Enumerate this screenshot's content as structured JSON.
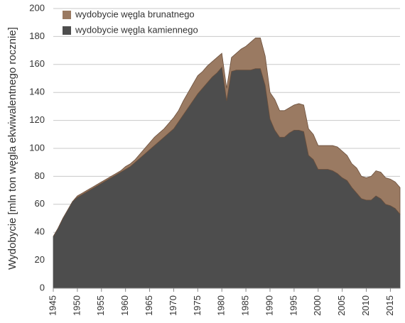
{
  "chart_data": {
    "type": "stacked_area",
    "y_label": "Wydobycie [mln ton węgla ekwiwalentnego rocznie]",
    "x": [
      1945,
      1946,
      1947,
      1948,
      1949,
      1950,
      1951,
      1952,
      1953,
      1954,
      1955,
      1956,
      1957,
      1958,
      1959,
      1960,
      1961,
      1962,
      1963,
      1964,
      1965,
      1966,
      1967,
      1968,
      1969,
      1970,
      1971,
      1972,
      1973,
      1974,
      1975,
      1976,
      1977,
      1978,
      1979,
      1980,
      1981,
      1982,
      1983,
      1984,
      1985,
      1986,
      1987,
      1988,
      1989,
      1990,
      1991,
      1992,
      1993,
      1994,
      1995,
      1996,
      1997,
      1998,
      1999,
      2000,
      2001,
      2002,
      2003,
      2004,
      2005,
      2006,
      2007,
      2008,
      2009,
      2010,
      2011,
      2012,
      2013,
      2014,
      2015,
      2016,
      2017
    ],
    "series": [
      {
        "name": "wydobycie węgla brunatnego",
        "color": "#9a7a62",
        "values": [
          0,
          0,
          0,
          0,
          0,
          1,
          1,
          1,
          1,
          1,
          1,
          1,
          1,
          1,
          1,
          2,
          2,
          2,
          3,
          4,
          5,
          6,
          6,
          6,
          7,
          8,
          8,
          10,
          11,
          12,
          13,
          12,
          12,
          11,
          11,
          10,
          9,
          10,
          12,
          15,
          17,
          20,
          22,
          22,
          21,
          19,
          22,
          19,
          19,
          18,
          18,
          19,
          19,
          19,
          18,
          17,
          17,
          17,
          18,
          19,
          19,
          18,
          17,
          18,
          16,
          16,
          17,
          18,
          19,
          19,
          19,
          19,
          19
        ]
      },
      {
        "name": "wydobycie węgla kamiennego",
        "color": "#4d4d4d",
        "values": [
          37,
          43,
          50,
          56,
          62,
          65,
          67,
          69,
          71,
          73,
          75,
          77,
          79,
          81,
          83,
          85,
          87,
          90,
          93,
          96,
          99,
          102,
          105,
          108,
          111,
          114,
          119,
          124,
          129,
          134,
          139,
          143,
          147,
          151,
          154,
          158,
          134,
          155,
          156,
          156,
          156,
          156,
          157,
          157,
          145,
          121,
          113,
          108,
          108,
          111,
          113,
          113,
          112,
          95,
          92,
          85,
          85,
          85,
          84,
          82,
          79,
          77,
          72,
          68,
          64,
          63,
          63,
          66,
          64,
          60,
          59,
          57,
          53
        ]
      }
    ],
    "xlim": [
      1945,
      2017
    ],
    "xticks": [
      1945,
      1950,
      1955,
      1960,
      1965,
      1970,
      1975,
      1980,
      1985,
      1990,
      1995,
      2000,
      2005,
      2010,
      2015
    ],
    "ylim": [
      0,
      200
    ],
    "yticks": [
      0,
      20,
      40,
      60,
      80,
      100,
      120,
      140,
      160,
      180,
      200
    ],
    "grid": true,
    "legend": "upper left"
  }
}
